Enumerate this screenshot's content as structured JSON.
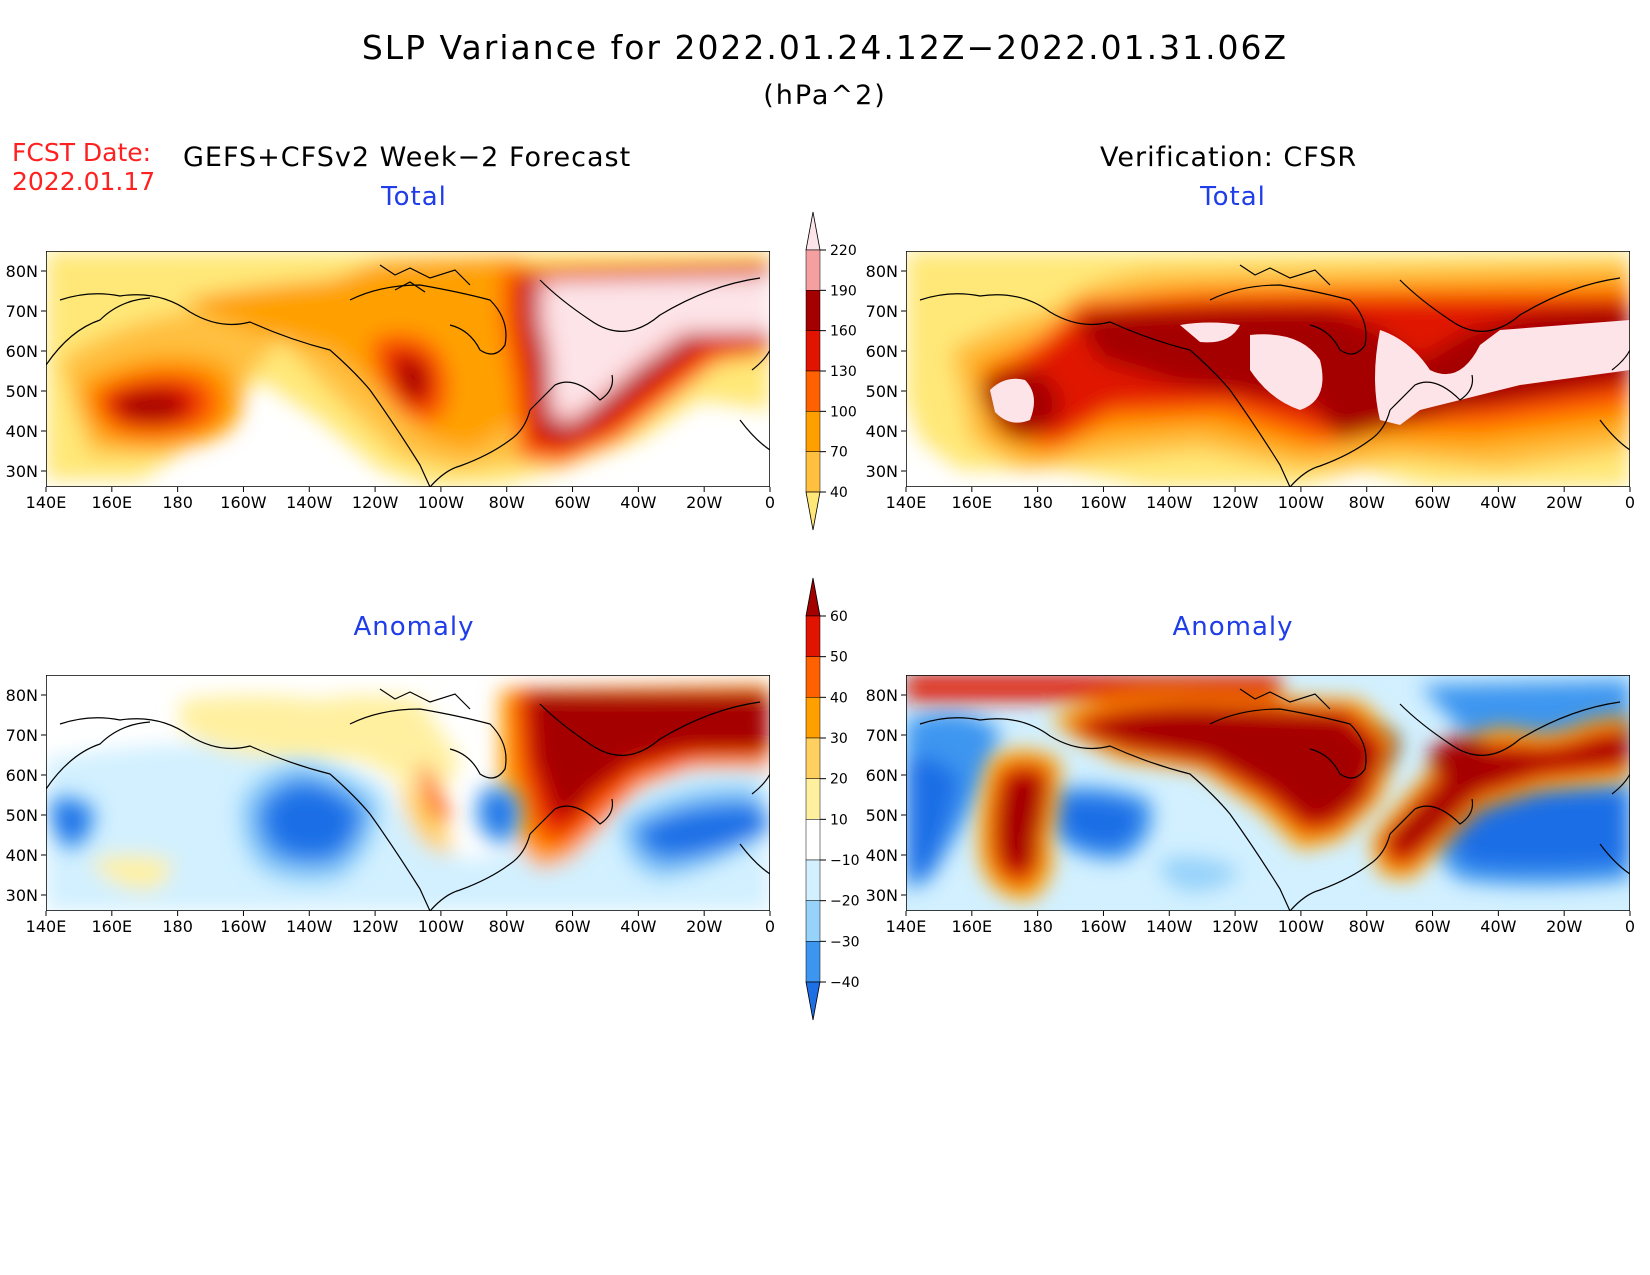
{
  "title": "SLP Variance for 2022.01.24.12Z−2022.01.31.06Z",
  "units": "(hPa^2)",
  "fcst_label": "FCST Date:",
  "fcst_date": "2022.01.17",
  "left_header": "GEFS+CFSv2 Week−2 Forecast",
  "right_header": "Verification: CFSR",
  "panels": [
    {
      "id": "fcst-total",
      "title": "Total"
    },
    {
      "id": "verif-total",
      "title": "Total"
    },
    {
      "id": "fcst-anomaly",
      "title": "Anomaly"
    },
    {
      "id": "verif-anomaly",
      "title": "Anomaly"
    }
  ],
  "lon_labels": [
    "140E",
    "160E",
    "180",
    "160W",
    "140W",
    "120W",
    "100W",
    "80W",
    "60W",
    "40W",
    "20W",
    "0"
  ],
  "lat_labels": [
    "80N",
    "70N",
    "60N",
    "50N",
    "40N",
    "30N"
  ],
  "total_colorbar": {
    "levels": [
      "40",
      "70",
      "100",
      "130",
      "160",
      "190",
      "220"
    ],
    "colors": [
      "#ffe878",
      "#ffc040",
      "#ffa000",
      "#ff6000",
      "#e01400",
      "#a50000",
      "#f4a0a0",
      "#fde4e8"
    ]
  },
  "anomaly_colorbar": {
    "levels": [
      "−40",
      "−30",
      "−20",
      "−10",
      "10",
      "20",
      "30",
      "40",
      "50",
      "60"
    ],
    "colors": [
      "#1e6ee6",
      "#3c96f0",
      "#96d2fa",
      "#d2f0ff",
      "#ffffff",
      "#fff0a0",
      "#ffd060",
      "#ffa000",
      "#ff6000",
      "#e01400",
      "#a50000"
    ]
  }
}
